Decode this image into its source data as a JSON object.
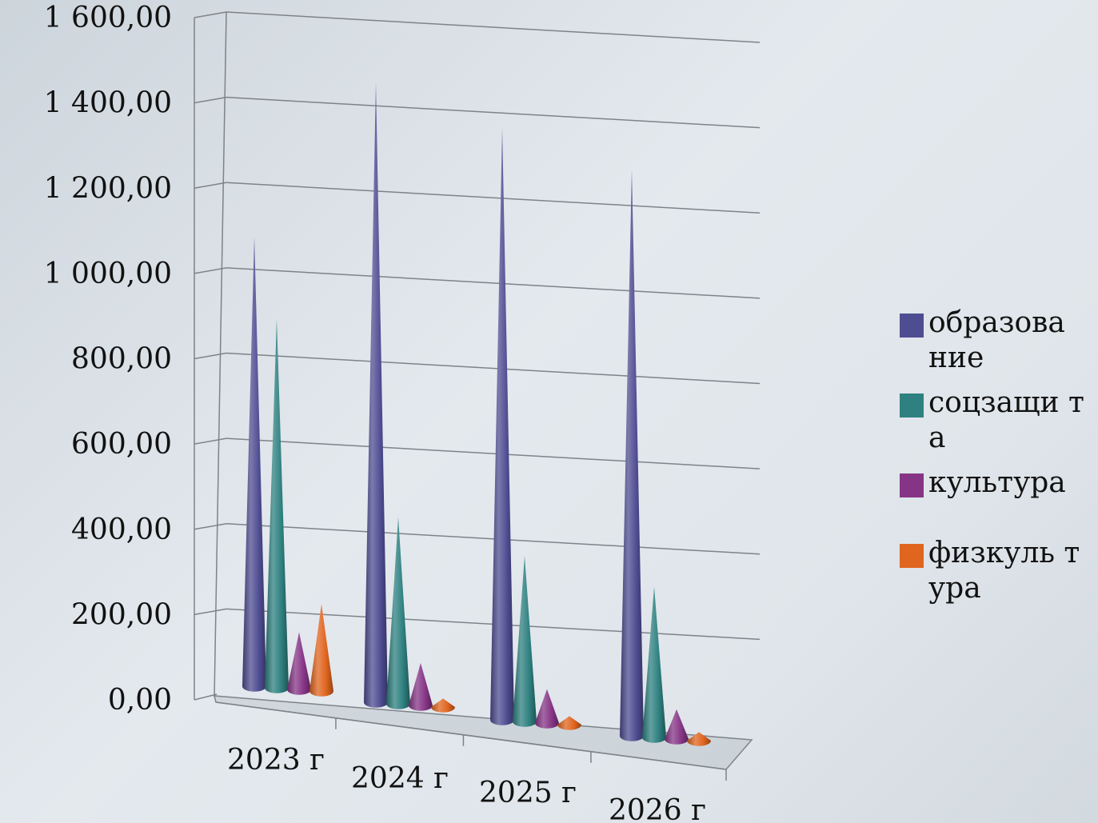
{
  "chart_data": {
    "type": "bar",
    "bar_shape": "cone-3d",
    "categories": [
      "2023 г",
      "2024 г",
      "2025 г",
      "2026 г"
    ],
    "series": [
      {
        "name": "образование",
        "color": "#4f4d92",
        "values": [
          1060,
          1460,
          1395,
          1335
        ]
      },
      {
        "name": "соцзащита",
        "color": "#2f8080",
        "values": [
          870,
          440,
          390,
          355
        ]
      },
      {
        "name": "культура",
        "color": "#863586",
        "values": [
          135,
          100,
          80,
          70
        ]
      },
      {
        "name": "физкультура",
        "color": "#e0651f",
        "values": [
          205,
          20,
          20,
          20
        ]
      }
    ],
    "y_ticks": [
      "0,00",
      "200,00",
      "400,00",
      "600,00",
      "800,00",
      "1 000,00",
      "1 200,00",
      "1 400,00",
      "1 600,00"
    ],
    "ylim": [
      0,
      1600
    ],
    "grid": true,
    "legend_position": "right"
  },
  "legend": [
    {
      "label": "образова ние",
      "color": "#4f4d92"
    },
    {
      "label": "соцзащи та",
      "color": "#2f8080"
    },
    {
      "label": "культура",
      "color": "#863586"
    },
    {
      "label": "физкуль тура",
      "color": "#e0651f"
    }
  ]
}
